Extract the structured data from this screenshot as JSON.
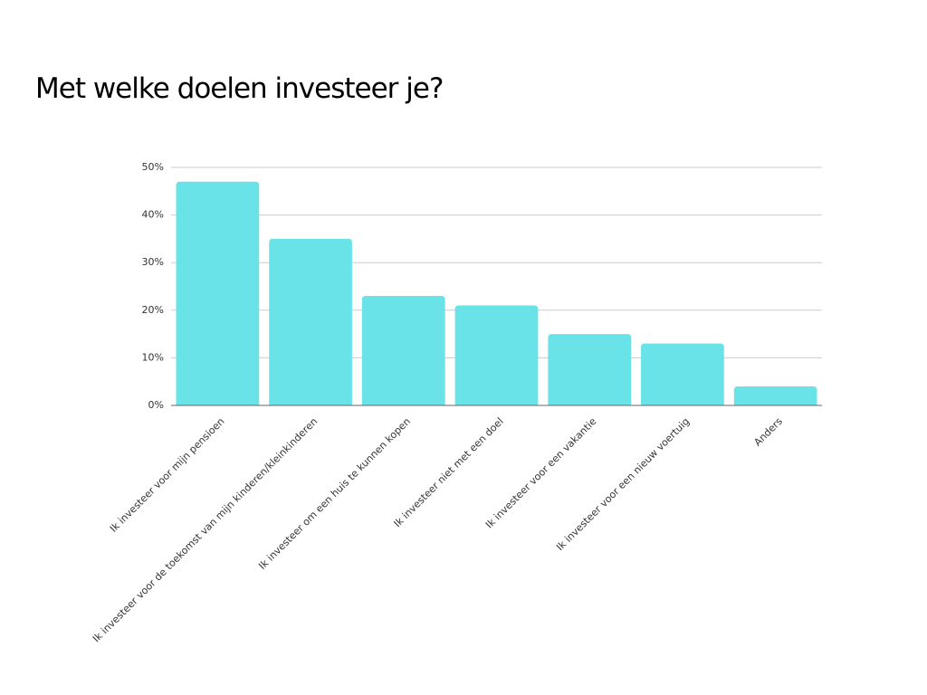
{
  "chart_data": {
    "type": "bar",
    "title": "Met welke doelen investeer je?",
    "categories": [
      "Ik investeer voor mijn pensioen",
      "Ik investeer voor de toekomst van mijn kinderen/kleinkinderen",
      "Ik investeer om een huis te kunnen kopen",
      "Ik investeer niet met een doel",
      "Ik investeer voor een vakantie",
      "Ik investeer voor een nieuw voertuig",
      "Anders"
    ],
    "values": [
      47,
      35,
      23,
      21,
      15,
      13,
      4
    ],
    "color": "#6ae3e8",
    "ylim": [
      0,
      50
    ],
    "yticks": [
      {
        "value": 0,
        "label": "0%"
      },
      {
        "value": 10,
        "label": "10%"
      },
      {
        "value": 20,
        "label": "20%"
      },
      {
        "value": 30,
        "label": "30%"
      },
      {
        "value": 40,
        "label": "40%"
      },
      {
        "value": 50,
        "label": "50%"
      }
    ],
    "grid": true
  }
}
